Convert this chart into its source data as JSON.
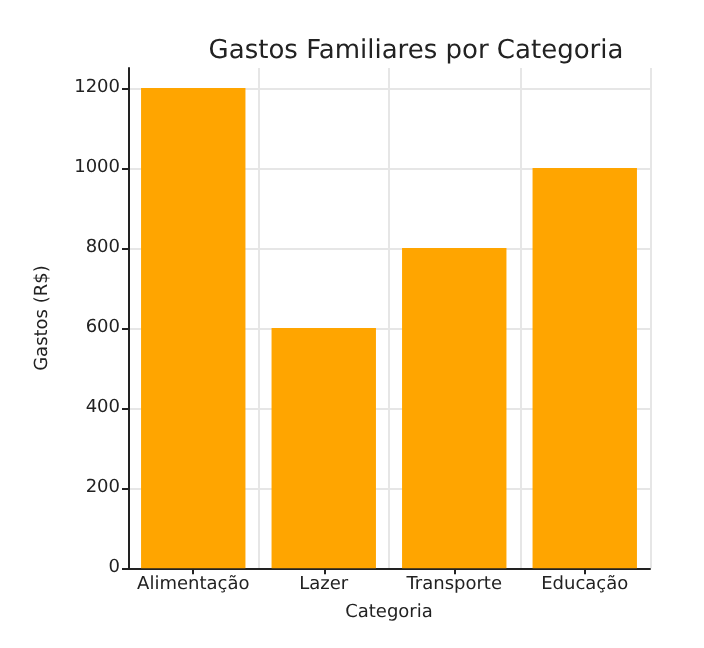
{
  "chart_data": {
    "type": "bar",
    "title": "Gastos Familiares por Categoria",
    "xlabel": "Categoria",
    "ylabel": "Gastos (R$)",
    "categories": [
      "Alimentação",
      "Lazer",
      "Transporte",
      "Educação"
    ],
    "values": [
      1200,
      600,
      800,
      1000
    ],
    "color": "#ffa500",
    "ylim": [
      0,
      1250
    ],
    "yticks": [
      0,
      200,
      400,
      600,
      800,
      1000,
      1200
    ],
    "grid": true
  }
}
